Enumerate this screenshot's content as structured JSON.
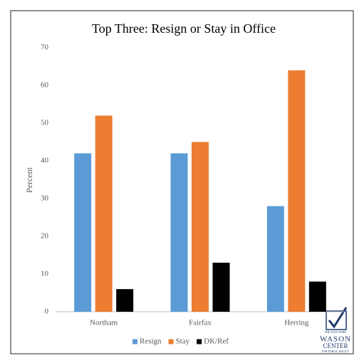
{
  "chart_data": {
    "type": "bar",
    "title": "Top Three: Resign or Stay in Office",
    "y_label": "Percent",
    "categories": [
      "Northam",
      "Fairfax",
      "Herring"
    ],
    "series": [
      {
        "name": "Resign",
        "color": "#5b9bd5",
        "values": [
          42,
          42,
          28
        ]
      },
      {
        "name": "Stay",
        "color": "#ed7d31",
        "values": [
          52,
          45,
          64
        ]
      },
      {
        "name": "DK/Ref",
        "color": "#000000",
        "values": [
          6,
          13,
          8
        ]
      }
    ],
    "ylim": [
      0,
      70
    ],
    "yticks": [
      0,
      10,
      20,
      30,
      40,
      50,
      60,
      70
    ],
    "grid": false,
    "legend": "bottom"
  },
  "logo": {
    "lines": [
      "THE JUDY FORD",
      "WASON",
      "CENTER",
      "FOR PUBLIC POLICY"
    ]
  }
}
